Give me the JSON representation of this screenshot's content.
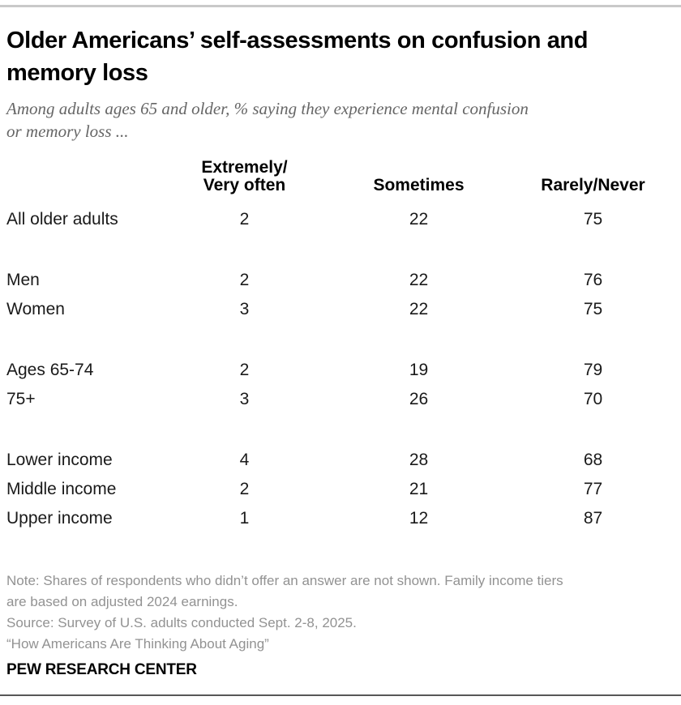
{
  "page": {
    "title_lines": [
      "Older Americans’ self-assessments on confusion and",
      "memory loss"
    ],
    "subtitle_lines": [
      "Among adults ages 65 and older, % saying they experience mental confusion",
      "or memory loss ..."
    ],
    "colors": {
      "rule_top": "#c9c9c9",
      "rule_bottom": "#575757",
      "title_text": "#000000",
      "subtitle_text": "#666666",
      "table_text": "#1a1a1a",
      "note_text": "#929292"
    }
  },
  "table_display": {
    "header_col1_line1": "Extremely/",
    "header_col1_line2": "Very often",
    "header_col2": "Sometimes",
    "header_col3": "Rarely/Never"
  },
  "chart_data": {
    "type": "table",
    "title": "Older Americans’ self-assessments on confusion and memory loss",
    "subtitle": "Among adults ages 65 and older, % saying they experience mental confusion or memory loss ...",
    "columns": [
      "Extremely/Very often",
      "Sometimes",
      "Rarely/Never"
    ],
    "row_groups": [
      {
        "rows": [
          {
            "label": "All older adults",
            "values": [
              2,
              22,
              75
            ]
          }
        ]
      },
      {
        "rows": [
          {
            "label": "Men",
            "values": [
              2,
              22,
              76
            ]
          },
          {
            "label": "Women",
            "values": [
              3,
              22,
              75
            ]
          }
        ]
      },
      {
        "rows": [
          {
            "label": "Ages 65-74",
            "values": [
              2,
              19,
              79
            ]
          },
          {
            "label": "75+",
            "values": [
              3,
              26,
              70
            ]
          }
        ]
      },
      {
        "rows": [
          {
            "label": "Lower income",
            "values": [
              4,
              28,
              68
            ]
          },
          {
            "label": "Middle income",
            "values": [
              2,
              21,
              77
            ]
          },
          {
            "label": "Upper income",
            "values": [
              1,
              12,
              87
            ]
          }
        ]
      }
    ]
  },
  "notes": {
    "lines": [
      "Note: Shares of respondents who didn’t offer an answer are not shown. Family income tiers",
      "are based on adjusted 2024 earnings.",
      "Source: Survey of U.S. adults conducted Sept. 2-8, 2025.",
      "“How Americans Are Thinking About Aging”"
    ]
  },
  "brand": "PEW RESEARCH CENTER"
}
